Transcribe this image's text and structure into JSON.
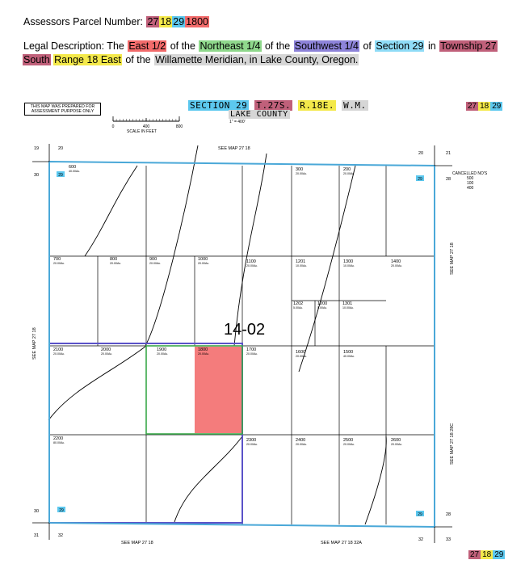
{
  "parcel_header": {
    "label": "Assessors Parcel Number:",
    "township": "27",
    "range": "18",
    "section": "29",
    "tax_lot": "1800"
  },
  "legal_description": {
    "label": "Legal Description: The",
    "part_east": "East 1/2",
    "of1": "of the",
    "part_ne": "Northeast 1/4",
    "of2": "of the",
    "part_sw": "Southwest 1/4",
    "of3": "of",
    "section": "Section 29",
    "in": "in",
    "township": "Township 27",
    "south": "South",
    "range": "Range 18 East",
    "of4": "of the",
    "meridian": "Willamette Meridian, in Lake County, Oregon."
  },
  "map": {
    "prepared_note": "THIS MAP WAS PREPARED FOR ASSESSMENT PURPOSE ONLY",
    "scale_label": "SCALE IN FEET",
    "scale_ticks": [
      "0",
      "400",
      "800"
    ],
    "title_section": "SECTION 29",
    "title_township": "T.27S.",
    "title_range": "R.18E.",
    "title_meridian": "W.M.",
    "county": "LAKE COUNTY",
    "scale_ratio": "1\" = 400'",
    "map_number": "14-02",
    "see_map_top": "SEE MAP 27 18",
    "see_map_bottom_left": "SEE MAP 27 18",
    "see_map_bottom_right": "SEE MAP 27 18 32A",
    "see_map_left": "SEE MAP 27 18",
    "see_map_right_upper": "SEE MAP 27 18",
    "see_map_right_lower": "SEE MAP 27 18 28C",
    "cancelled_label": "CANCELLED NO'S",
    "cancelled_numbers": [
      "500",
      "100",
      "400"
    ],
    "section_corners": {
      "tl_outer": "19",
      "tl_top": "20",
      "tl_left": "30",
      "tr_top": "20",
      "tr_outer": "21",
      "tr_right": "28",
      "bl_left": "30",
      "bl_outer": "31",
      "bl_bottom": "32",
      "br_bottom": "32",
      "br_outer": "33",
      "br_right": "28"
    },
    "section_badge": "29",
    "lots": [
      {
        "num": "600",
        "area": "40.00Ac."
      },
      {
        "num": "300",
        "area": "20.00Ac."
      },
      {
        "num": "200",
        "area": "20.00Ac."
      },
      {
        "num": "700",
        "area": "20.00Ac."
      },
      {
        "num": "800",
        "area": "20.00Ac."
      },
      {
        "num": "900",
        "area": "20.00Ac."
      },
      {
        "num": "1000",
        "area": "20.00Ac."
      },
      {
        "num": "1100",
        "area": "20.00Ac."
      },
      {
        "num": "1201",
        "area": "10.00Ac."
      },
      {
        "num": "1300",
        "area": "10.00Ac."
      },
      {
        "num": "1400",
        "area": "20.00Ac."
      },
      {
        "num": "1202",
        "area": "5.00Ac."
      },
      {
        "num": "1200",
        "area": "5.00Ac."
      },
      {
        "num": "1301",
        "area": "10.00Ac."
      },
      {
        "num": "2100",
        "area": "20.00Ac."
      },
      {
        "num": "2000",
        "area": "20.00Ac."
      },
      {
        "num": "1900",
        "area": "20.00Ac."
      },
      {
        "num": "1800",
        "area": "20.00Ac."
      },
      {
        "num": "1700",
        "area": "20.00Ac."
      },
      {
        "num": "1600",
        "area": "20.00Ac."
      },
      {
        "num": "1500",
        "area": "40.00Ac."
      },
      {
        "num": "2200",
        "area": "80.00Ac."
      },
      {
        "num": "2300",
        "area": "20.00Ac."
      },
      {
        "num": "2400",
        "area": "20.00Ac."
      },
      {
        "num": "2500",
        "area": "20.00Ac."
      },
      {
        "num": "2600",
        "area": "20.00Ac."
      }
    ]
  },
  "badges": {
    "township": "27",
    "range": "18",
    "section": "29"
  },
  "colors": {
    "section_boundary": "#4aa8d8",
    "sw_quarter": "#5a52c8",
    "ne_quarter": "#3aa84a",
    "target_lot": "#f47c7c",
    "township": "#c0607a",
    "range": "#f4e94a",
    "section": "#5cc8ef"
  }
}
